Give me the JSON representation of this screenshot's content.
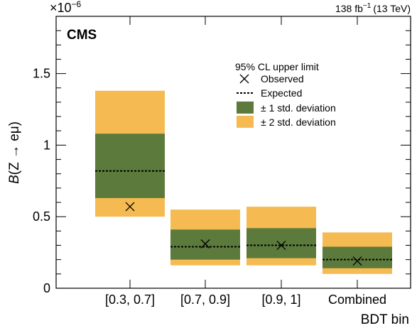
{
  "header": {
    "exponent": "×10",
    "exponent_power": "−6",
    "lumi_value": "138 fb",
    "lumi_power": "−1",
    "lumi_energy": "(13 TeV)",
    "experiment": "CMS"
  },
  "legend": {
    "title": "95% CL upper limit",
    "observed": "Observed",
    "expected": "Expected",
    "one_sigma": "± 1 std. deviation",
    "two_sigma": "± 2 std. deviation"
  },
  "axes": {
    "xlabel": "BDT bin",
    "ylabel_prefix": "B",
    "ylabel_process": "(Z → eμ)",
    "yticks": [
      "0",
      "0.5",
      "1",
      "1.5"
    ]
  },
  "colors": {
    "one_sigma": "#5b7a3b",
    "two_sigma": "#f5bb52",
    "line": "#000000"
  },
  "chart_data": {
    "type": "bar",
    "categories": [
      "[0.3, 0.7]",
      "[0.7, 0.9]",
      "[0.9, 1]",
      "Combined"
    ],
    "ylim": [
      0,
      1.9
    ],
    "yscale_factor": "1e-6",
    "observed": [
      0.57,
      0.31,
      0.3,
      0.19
    ],
    "expected": [
      0.82,
      0.29,
      0.3,
      0.2
    ],
    "one_sigma_low": [
      0.63,
      0.2,
      0.21,
      0.14
    ],
    "one_sigma_high": [
      1.08,
      0.41,
      0.42,
      0.29
    ],
    "two_sigma_low": [
      0.5,
      0.16,
      0.16,
      0.1
    ],
    "two_sigma_high": [
      1.38,
      0.55,
      0.57,
      0.39
    ],
    "xlabel": "BDT bin",
    "ylabel": "B(Z → eμ)"
  }
}
